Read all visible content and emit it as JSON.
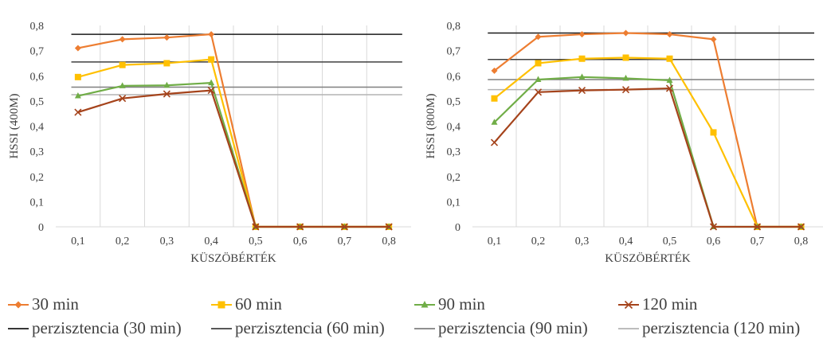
{
  "chart_data": [
    {
      "type": "line",
      "ylabel": "HSSI (400M)",
      "xlabel": "KÜSZÖBÉRTÉK",
      "categories": [
        "0,1",
        "0,2",
        "0,3",
        "0,4",
        "0,5",
        "0,6",
        "0,7",
        "0,8"
      ],
      "yticks": [
        "0",
        "0,1",
        "0,2",
        "0,3",
        "0,4",
        "0,5",
        "0,6",
        "0,7",
        "0,8"
      ],
      "ylim": [
        0,
        0.8
      ],
      "grid": "vertical",
      "series": [
        {
          "name": "30 min",
          "color": "#ED7D31",
          "marker": "diamond",
          "values": [
            0.71,
            0.745,
            0.752,
            0.765,
            0,
            0,
            0,
            0
          ]
        },
        {
          "name": "60 min",
          "color": "#FFC000",
          "marker": "square",
          "values": [
            0.595,
            0.643,
            0.65,
            0.665,
            0,
            0,
            0,
            0
          ]
        },
        {
          "name": "90 min",
          "color": "#70AD47",
          "marker": "triangle",
          "values": [
            0.52,
            0.56,
            0.562,
            0.572,
            0,
            0,
            0,
            0
          ]
        },
        {
          "name": "120 min",
          "color": "#A5431B",
          "marker": "x",
          "values": [
            0.455,
            0.51,
            0.528,
            0.542,
            0,
            0,
            0,
            0
          ]
        }
      ],
      "reference_lines": [
        {
          "name": "perzisztencia (30 min)",
          "color": "#1A1A1A",
          "value": 0.765
        },
        {
          "name": "perzisztencia (60 min)",
          "color": "#404040",
          "value": 0.655
        },
        {
          "name": "perzisztencia (90 min)",
          "color": "#7F7F7F",
          "value": 0.555
        },
        {
          "name": "perzisztencia (120 min)",
          "color": "#B3B3B3",
          "value": 0.525
        }
      ]
    },
    {
      "type": "line",
      "ylabel": "HSSI (800M)",
      "xlabel": "KÜSZÖBÉRTÉK",
      "categories": [
        "0,1",
        "0,2",
        "0,3",
        "0,4",
        "0,5",
        "0,6",
        "0,7",
        "0,8"
      ],
      "yticks": [
        "0",
        "0,1",
        "0,2",
        "0,3",
        "0,4",
        "0,5",
        "0,6",
        "0,7",
        "0,8"
      ],
      "ylim": [
        0,
        0.8
      ],
      "grid": "vertical",
      "series": [
        {
          "name": "30 min",
          "color": "#ED7D31",
          "marker": "diamond",
          "values": [
            0.62,
            0.755,
            0.765,
            0.77,
            0.765,
            0.745,
            0,
            0
          ]
        },
        {
          "name": "60 min",
          "color": "#FFC000",
          "marker": "square",
          "values": [
            0.51,
            0.65,
            0.668,
            0.672,
            0.668,
            0.375,
            0,
            0
          ]
        },
        {
          "name": "90 min",
          "color": "#70AD47",
          "marker": "triangle",
          "values": [
            0.415,
            0.585,
            0.595,
            0.59,
            0.582,
            0,
            0,
            0
          ]
        },
        {
          "name": "120 min",
          "color": "#A5431B",
          "marker": "x",
          "values": [
            0.335,
            0.535,
            0.542,
            0.545,
            0.55,
            0,
            0,
            0
          ]
        }
      ],
      "reference_lines": [
        {
          "name": "perzisztencia (30 min)",
          "color": "#1A1A1A",
          "value": 0.77
        },
        {
          "name": "perzisztencia (60 min)",
          "color": "#404040",
          "value": 0.665
        },
        {
          "name": "perzisztencia (90 min)",
          "color": "#7F7F7F",
          "value": 0.585
        },
        {
          "name": "perzisztencia (120 min)",
          "color": "#B3B3B3",
          "value": 0.545
        }
      ]
    }
  ],
  "legend": {
    "placement": "bottom",
    "items": [
      {
        "label": "30 min",
        "color": "#ED7D31",
        "marker": "diamond"
      },
      {
        "label": "60 min",
        "color": "#FFC000",
        "marker": "square"
      },
      {
        "label": "90 min",
        "color": "#70AD47",
        "marker": "triangle"
      },
      {
        "label": "120 min",
        "color": "#A5431B",
        "marker": "x"
      },
      {
        "label": "perzisztencia (30 min)",
        "color": "#1A1A1A",
        "marker": "none"
      },
      {
        "label": "perzisztencia (60 min)",
        "color": "#404040",
        "marker": "none"
      },
      {
        "label": "perzisztencia (90 min)",
        "color": "#7F7F7F",
        "marker": "none"
      },
      {
        "label": "perzisztencia (120 min)",
        "color": "#B3B3B3",
        "marker": "none"
      }
    ]
  }
}
